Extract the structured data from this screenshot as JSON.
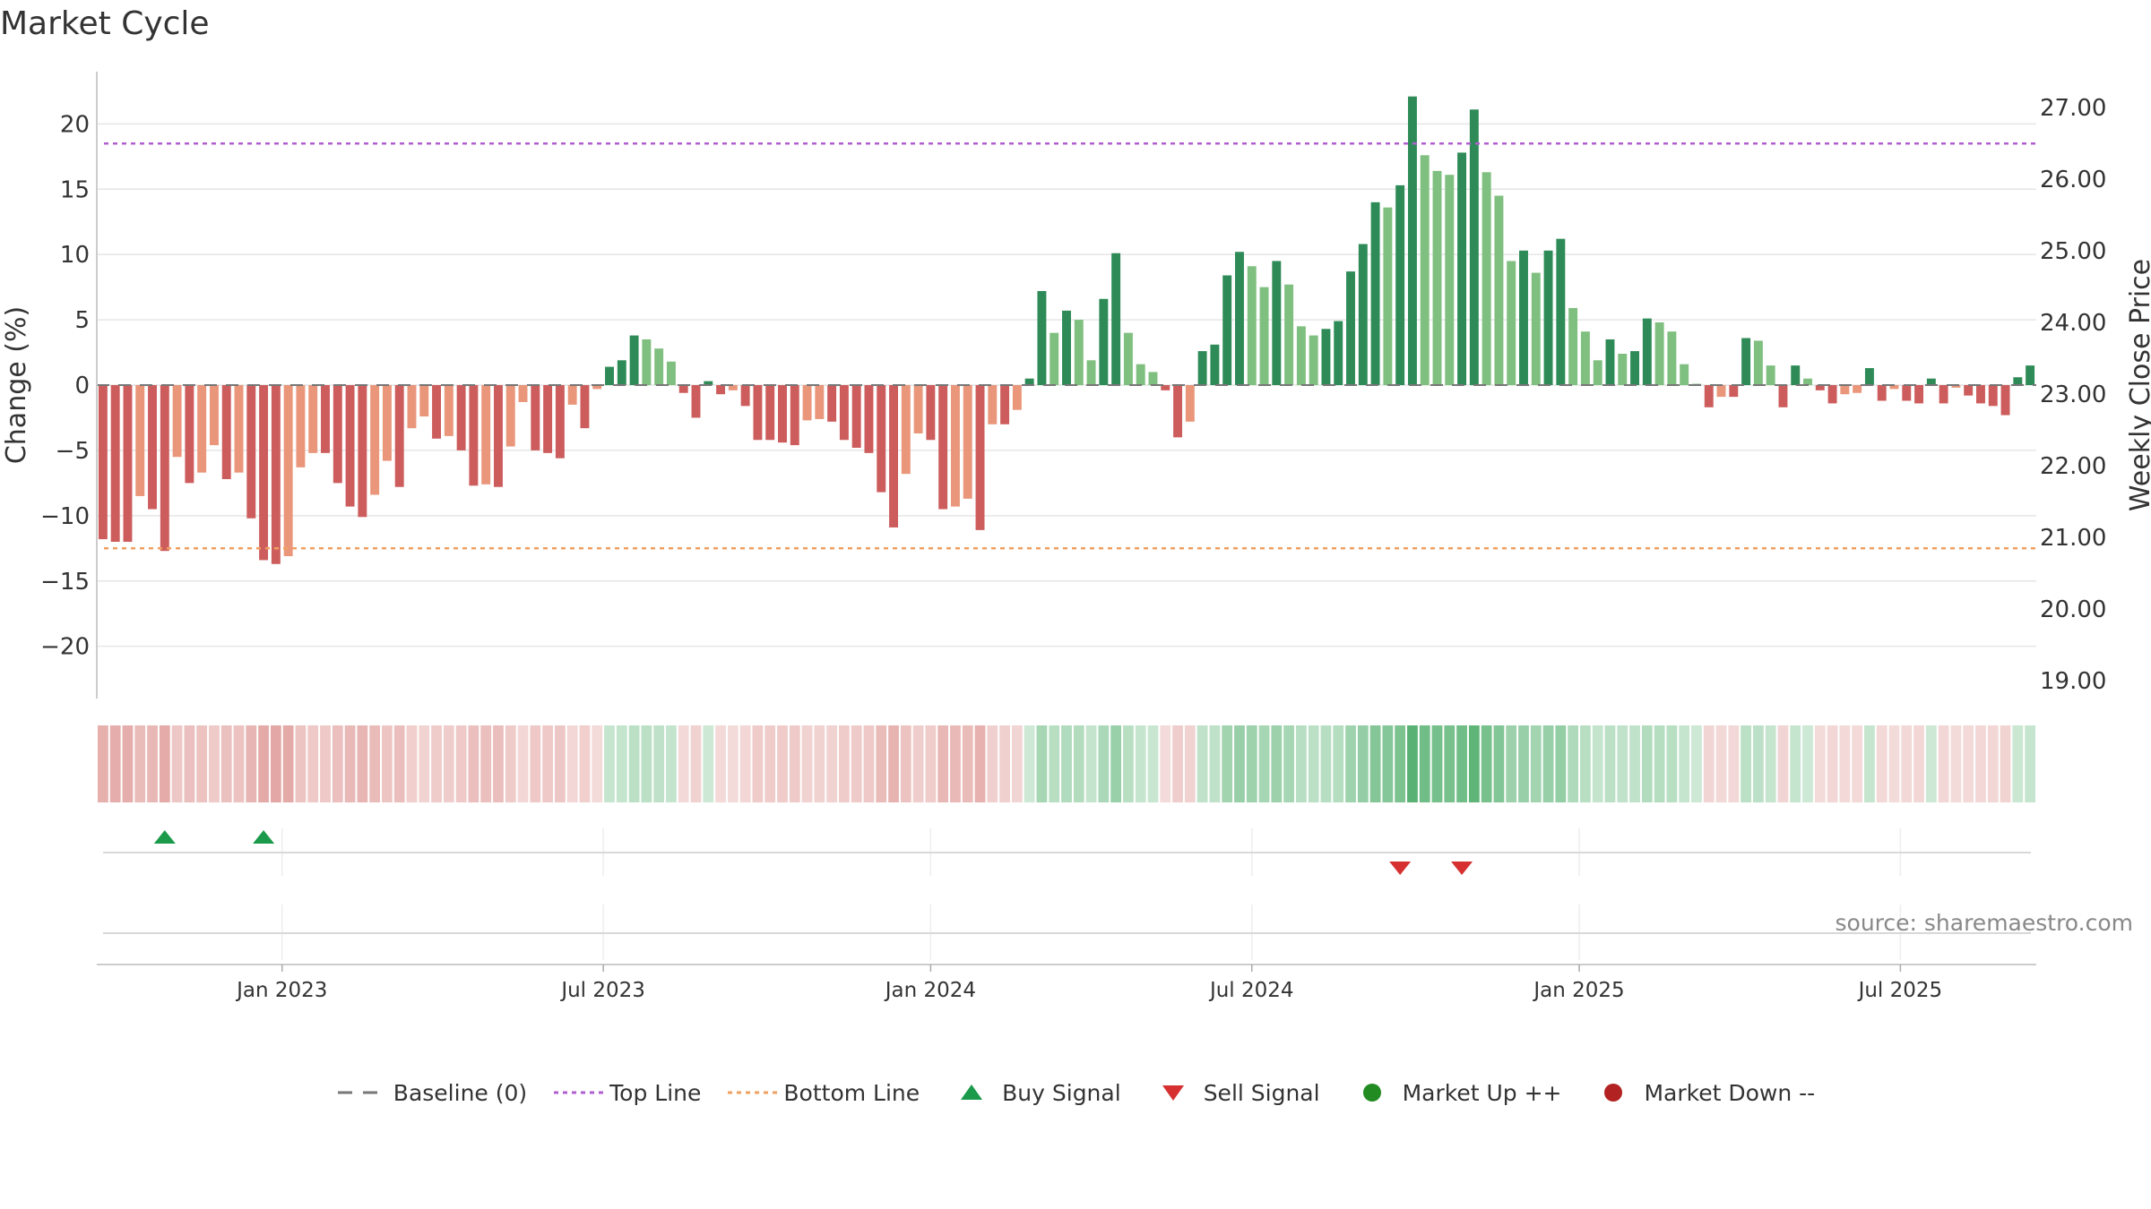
{
  "title": "Market Cycle",
  "source": "source: sharemaestro.com",
  "legend": {
    "baseline": "Baseline (0)",
    "top_line": "Top Line",
    "bottom_line": "Bottom Line",
    "buy_signal": "Buy Signal",
    "sell_signal": "Sell Signal",
    "market_up": "Market Up ++",
    "market_down": "Market Down --"
  },
  "colors": {
    "strong_green": "#2e8b57",
    "light_green": "#7fbf7f",
    "strong_red": "#cd5c5c",
    "light_red": "#e9967a",
    "top_line": "#b05fd0",
    "bottom_line": "#f0a060",
    "baseline": "#777777",
    "buy": "#1a9a4a",
    "sell": "#d63030",
    "market_up": "#228b22",
    "market_down": "#b22222"
  },
  "chart_data": {
    "type": "bar",
    "ylabel": "Change (%)",
    "y2label": "Weekly Close Price",
    "ylim": [
      -24,
      24
    ],
    "y2lim": [
      18.75,
      27.5
    ],
    "y_ticks": [
      "−20",
      "−15",
      "−10",
      "−5",
      "0",
      "5",
      "10",
      "15",
      "20"
    ],
    "y2_ticks": [
      "19.00",
      "20.00",
      "21.00",
      "22.00",
      "23.00",
      "24.00",
      "25.00",
      "26.00",
      "27.00"
    ],
    "x_ticks": [
      {
        "label": "Jan 2023",
        "week": 15
      },
      {
        "label": "Jul 2023",
        "week": 41
      },
      {
        "label": "Jan 2024",
        "week": 67.5
      },
      {
        "label": "Jul 2024",
        "week": 93.5
      },
      {
        "label": "Jan 2025",
        "week": 120
      },
      {
        "label": "Jul 2025",
        "week": 146
      }
    ],
    "top_line": 18.5,
    "bottom_line": -12.5,
    "values": [
      -11.8,
      -12,
      -12,
      -8.5,
      -9.5,
      -12.7,
      -5.5,
      -7.5,
      -6.7,
      -4.6,
      -7.2,
      -6.7,
      -10.2,
      -13.4,
      -13.7,
      -13.1,
      -6.3,
      -5.2,
      -5.2,
      -7.5,
      -9.3,
      -10.1,
      -8.4,
      -5.8,
      -7.8,
      -3.3,
      -2.4,
      -4.1,
      -3.9,
      -5,
      -7.7,
      -7.6,
      -7.8,
      -4.7,
      -1.3,
      -5,
      -5.2,
      -5.6,
      -1.5,
      -3.3,
      -0.3,
      1.4,
      1.9,
      3.8,
      3.5,
      2.8,
      1.8,
      -0.6,
      -2.5,
      0.3,
      -0.7,
      -0.4,
      -1.6,
      -4.2,
      -4.2,
      -4.4,
      -4.6,
      -2.7,
      -2.6,
      -2.8,
      -4.2,
      -4.8,
      -5.2,
      -8.2,
      -10.9,
      -6.8,
      -3.7,
      -4.2,
      -9.5,
      -9.3,
      -8.7,
      -11.1,
      -3,
      -3,
      -1.9,
      0.5,
      7.2,
      4,
      5.7,
      5,
      1.9,
      6.6,
      10.1,
      4,
      1.6,
      1,
      -0.4,
      -4,
      -2.8,
      2.6,
      3.1,
      8.4,
      10.2,
      9.1,
      7.5,
      9.5,
      7.7,
      4.5,
      3.8,
      4.3,
      4.9,
      8.7,
      10.8,
      14,
      13.6,
      15.3,
      22.1,
      17.6,
      16.4,
      16.1,
      17.8,
      21.1,
      16.3,
      14.5,
      9.5,
      10.3,
      8.6,
      10.3,
      11.2,
      5.9,
      4.1,
      1.9,
      3.5,
      2.4,
      2.6,
      5.1,
      4.8,
      4.1,
      1.6,
      0.1,
      -1.7,
      -0.9,
      -0.9,
      3.6,
      3.4,
      1.5,
      -1.7,
      1.5,
      0.5,
      -0.4,
      -1.4,
      -0.7,
      -0.6,
      1.3,
      -1.2,
      -0.3,
      -1.2,
      -1.4,
      0.5,
      -1.4,
      -0.2,
      -0.8,
      -1.4,
      -1.6,
      -2.3,
      0.6,
      1.5
    ],
    "buy_signals": [
      5,
      13
    ],
    "sell_signals": [
      105,
      110
    ]
  }
}
